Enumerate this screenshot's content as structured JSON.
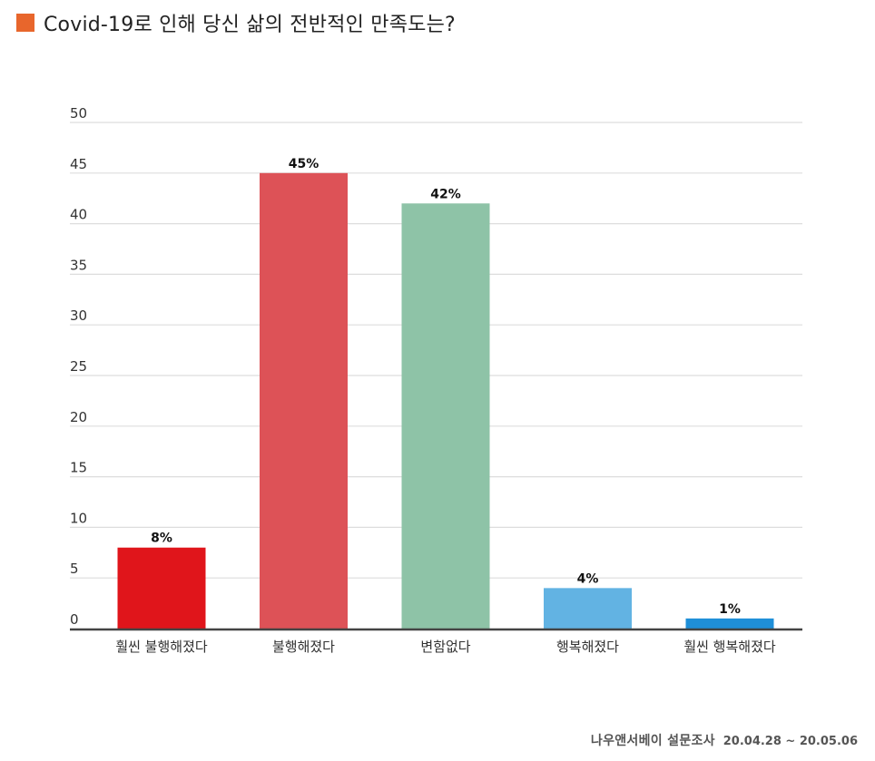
{
  "header": {
    "title": "Covid-19로 인해 당신 삶의 전반적인 만족도는?"
  },
  "colors": {
    "title_marker": "#e8662c",
    "grid": "#dddddd",
    "axis": "#444444"
  },
  "chart_data": {
    "type": "bar",
    "title": "Covid-19로 인해 당신 삶의 전반적인 만족도는?",
    "categories": [
      "훨씬 불행해졌다",
      "불행해졌다",
      "변함없다",
      "행복해졌다",
      "훨씬 행복해졌다"
    ],
    "values": [
      8,
      45,
      42,
      4,
      1
    ],
    "value_labels": [
      "8%",
      "45%",
      "42%",
      "4%",
      "1%"
    ],
    "bar_colors": [
      "#e0151b",
      "#dd5257",
      "#8ec3a7",
      "#62b3e3",
      "#1f8fd8"
    ],
    "ylim": [
      0,
      50
    ],
    "yticks": [
      0,
      5,
      10,
      15,
      20,
      25,
      30,
      35,
      40,
      45,
      50
    ],
    "xlabel": "",
    "ylabel": "",
    "grid": true,
    "legend": "none"
  },
  "footer": {
    "survey": "나우앤서베이 설문조사",
    "period": "20.04.28 ~ 20.05.06"
  }
}
